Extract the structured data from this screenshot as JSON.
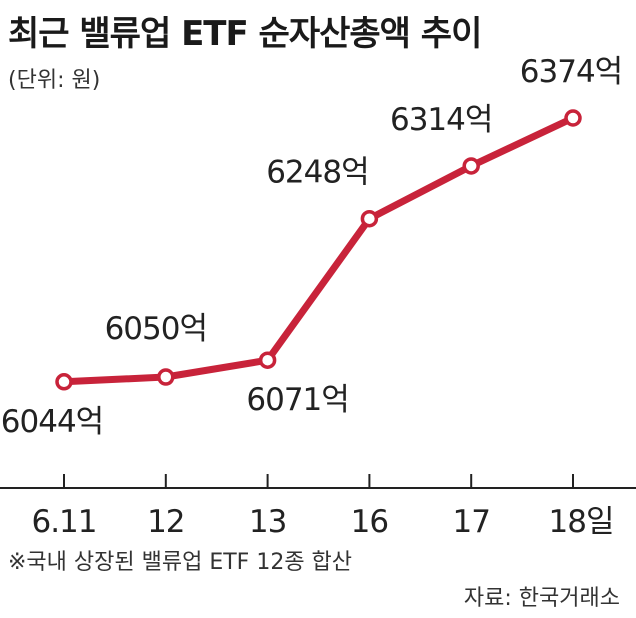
{
  "header": {
    "title": "최근 밸류업 ETF 순자산총액 추이",
    "unit_note": "(단위: 원)"
  },
  "footer": {
    "footnote": "※국내 상장된 밸류업 ETF 12종 합산",
    "source": "자료: 한국거래소"
  },
  "colors": {
    "line": "#c8233a",
    "marker_fill": "#ffffff",
    "axis": "#222222",
    "text": "#222222"
  },
  "chart_data": {
    "type": "line",
    "title": "최근 밸류업 ETF 순자산총액 추이",
    "unit": "(단위: 원)",
    "xlabel": "",
    "ylabel": "",
    "categories": [
      "6.11",
      "12",
      "13",
      "16",
      "17",
      "18일"
    ],
    "series": [
      {
        "values": [
          6044,
          6050,
          6071,
          6248,
          6314,
          6374
        ],
        "labels": [
          "6044억",
          "6050억",
          "6071억",
          "6248억",
          "6314억",
          "6374억"
        ]
      }
    ],
    "ylim": [
      6000,
      6400
    ],
    "grid": false,
    "legend": "none",
    "markers": "hollow-circle"
  }
}
